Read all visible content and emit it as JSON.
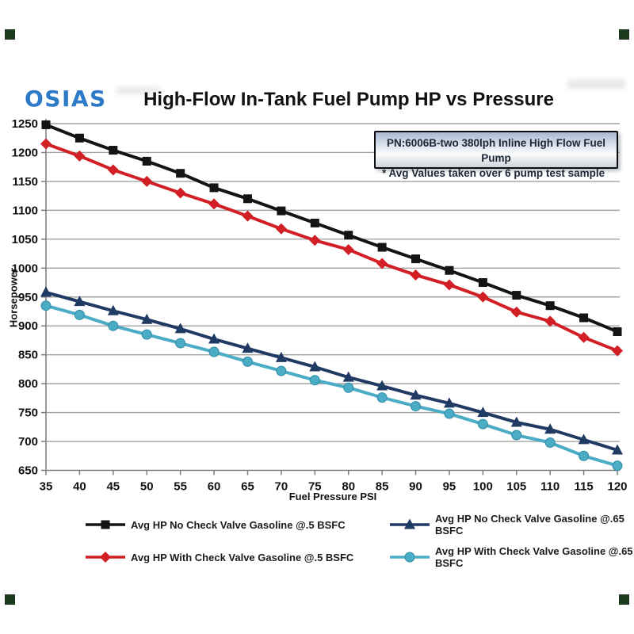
{
  "header": {
    "logo": "OSIAS"
  },
  "annotation": {
    "line1": "PN:6006B-two 380lph Inline High Flow Fuel Pump",
    "line2": "* Avg Values taken over 6 pump test sample"
  },
  "chart_data": {
    "type": "line",
    "title": "High-Flow In-Tank Fuel Pump HP vs Pressure",
    "xlabel": "Fuel Pressure PSI",
    "ylabel": "Horsepower",
    "x": [
      35,
      40,
      45,
      50,
      55,
      60,
      65,
      70,
      75,
      80,
      85,
      90,
      95,
      100,
      105,
      110,
      115,
      120
    ],
    "xlim": [
      35,
      120
    ],
    "ylim": [
      650,
      1250
    ],
    "ytick_step": 50,
    "grid": true,
    "legend_position": "bottom",
    "series": [
      {
        "name": "Avg HP No Check Valve Gasoline @.5 BSFC",
        "marker": "square",
        "color": "#141414",
        "values": [
          1248,
          1225,
          1204,
          1185,
          1164,
          1139,
          1120,
          1099,
          1078,
          1057,
          1036,
          1016,
          996,
          975,
          953,
          935,
          914,
          890
        ]
      },
      {
        "name": "Avg HP With Check Valve Gasoline @.5 BSFC",
        "marker": "diamond",
        "color": "#d21f26",
        "values": [
          1215,
          1194,
          1170,
          1150,
          1130,
          1111,
          1090,
          1068,
          1048,
          1032,
          1008,
          988,
          971,
          950,
          924,
          908,
          880,
          857
        ]
      },
      {
        "name": "Avg HP No Check Valve Gasoline @.65 BSFC",
        "marker": "triangle",
        "color": "#1f3a63",
        "values": [
          958,
          942,
          926,
          911,
          895,
          877,
          861,
          845,
          829,
          811,
          796,
          780,
          766,
          750,
          733,
          721,
          703,
          685
        ]
      },
      {
        "name": "Avg HP With Check Valve Gasoline @.65 BSFC",
        "marker": "circle",
        "color": "#4bacc6",
        "values": [
          935,
          919,
          900,
          885,
          870,
          855,
          838,
          822,
          806,
          793,
          776,
          761,
          748,
          730,
          711,
          698,
          675,
          658
        ]
      }
    ]
  },
  "colors": {
    "grid": "#a2a2a2",
    "axis": "#7c7c7c",
    "logo": "#2c7ac8",
    "circle_edge": "#2f8aa5"
  }
}
